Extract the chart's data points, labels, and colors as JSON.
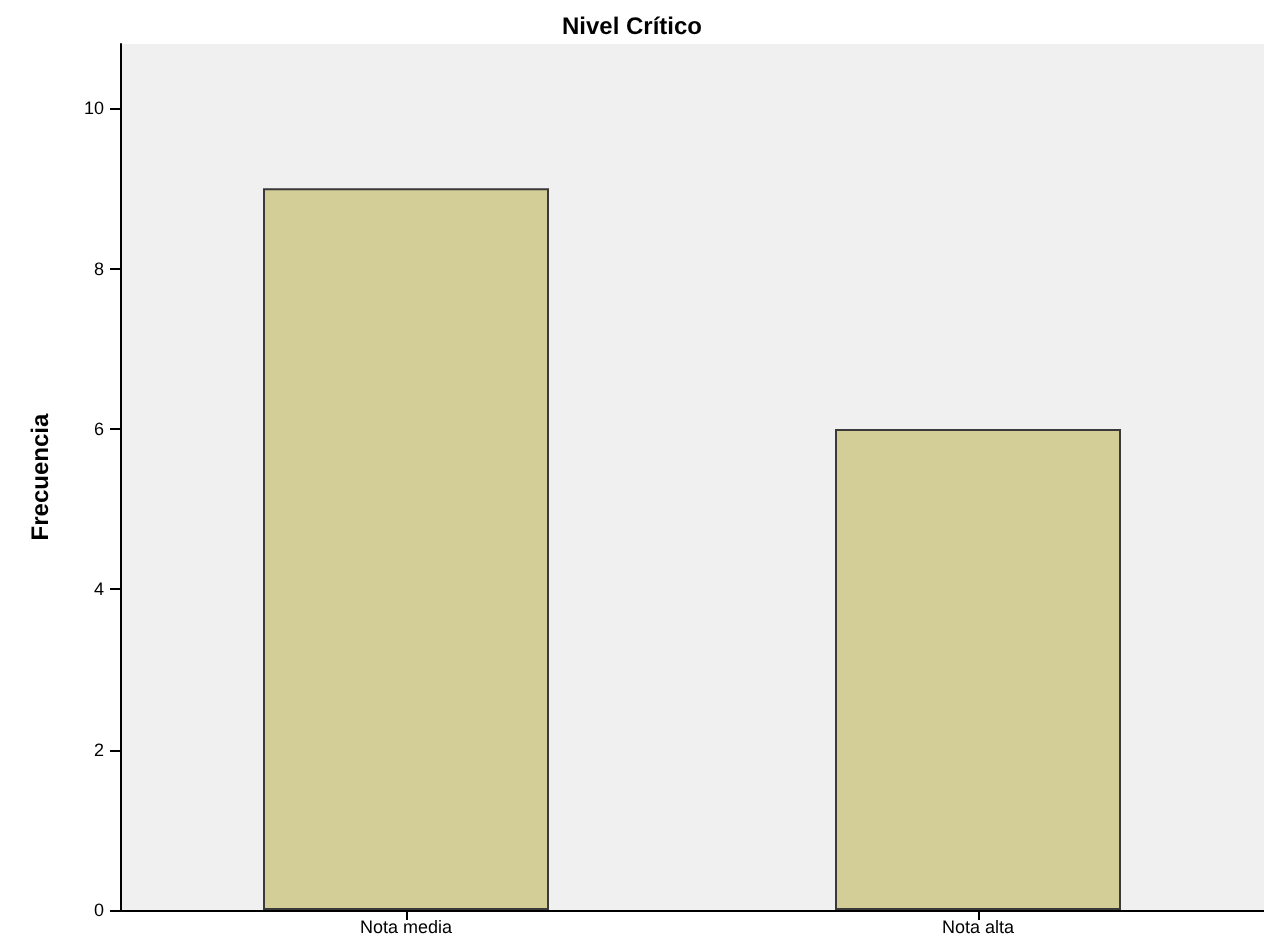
{
  "chart_data": {
    "type": "bar",
    "title": "Nivel Crítico",
    "ylabel": "Frecuencia",
    "categories": [
      "Nota media",
      "Nota alta"
    ],
    "values": [
      9,
      6
    ],
    "color": "#d3ce97",
    "ylim": [
      0,
      10.8
    ],
    "yticks": [
      0,
      2,
      4,
      6,
      8,
      10
    ],
    "grid": false
  }
}
